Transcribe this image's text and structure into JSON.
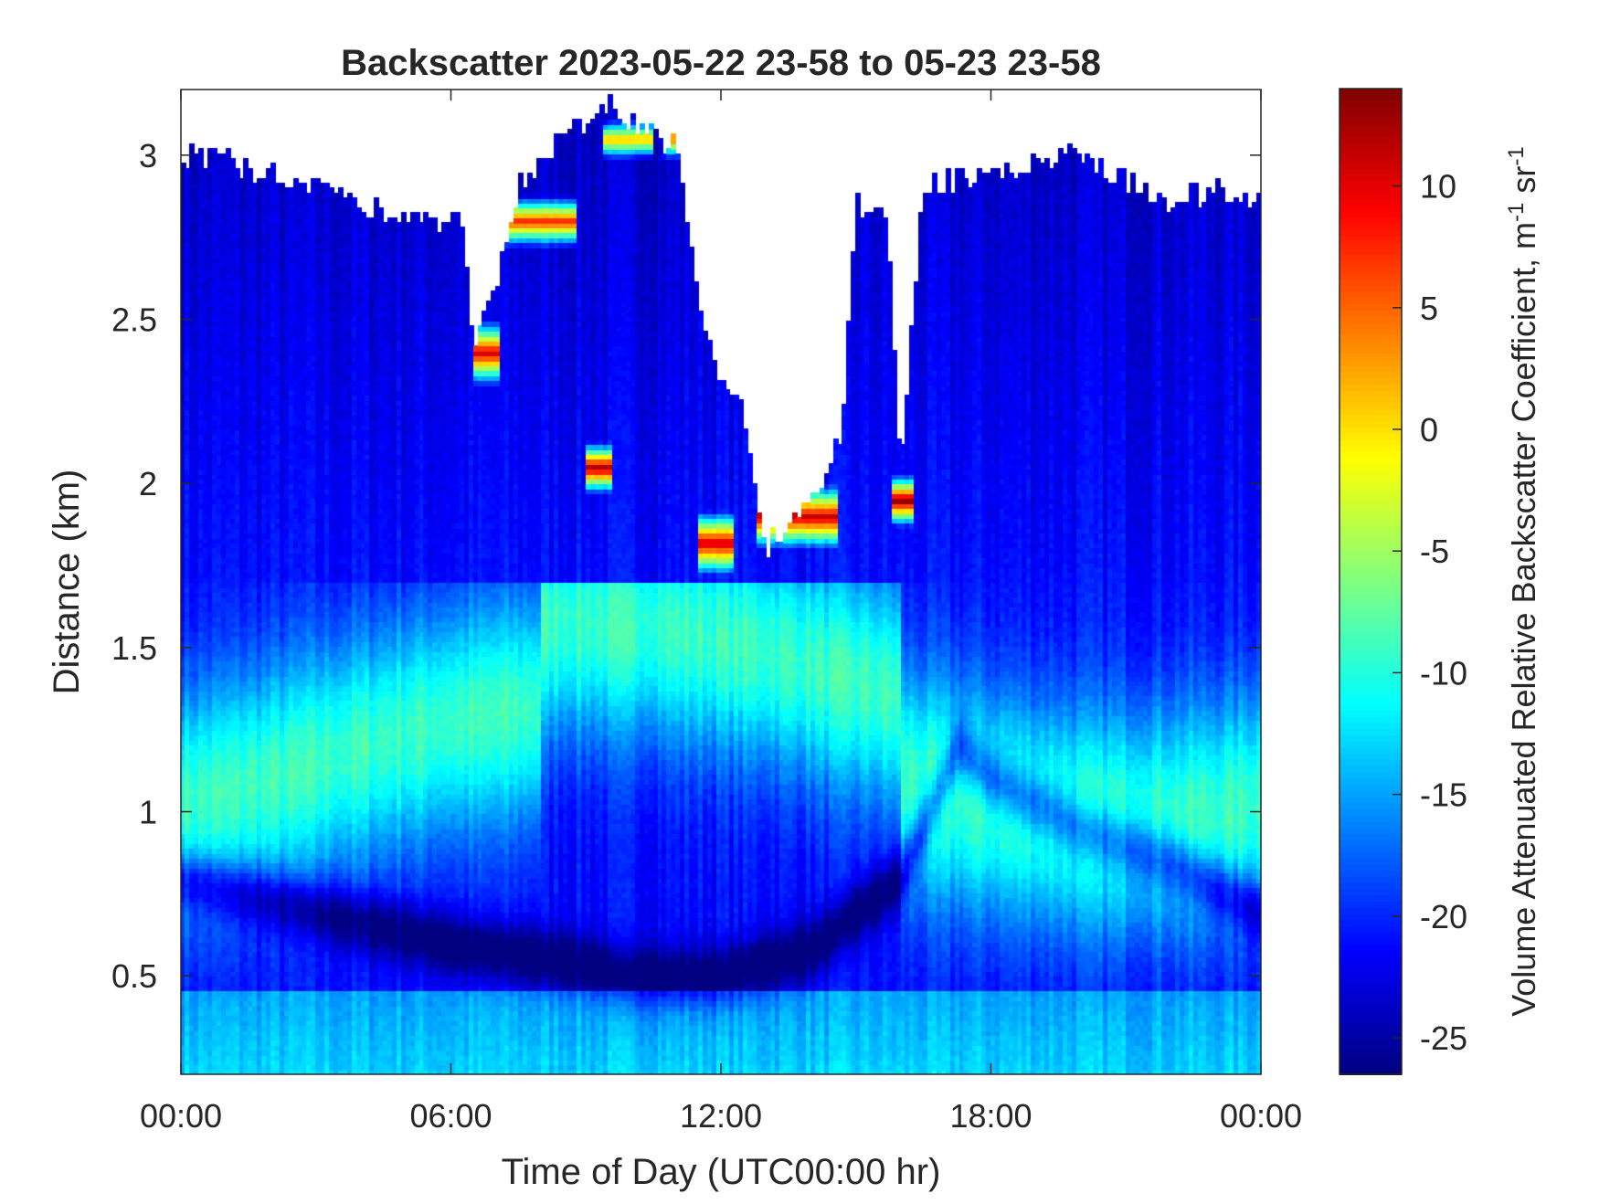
{
  "chart_data": {
    "type": "heatmap",
    "title": "Backscatter 2023-05-22 23-58 to 05-23 23-58",
    "xlabel": "Time of Day (UTC00:00 hr)",
    "ylabel": "Distance (km)",
    "colorbar_label": "Volume Attenuated Relative Backscatter Coefficient, m",
    "colorbar_sup_1": "-1",
    "colorbar_unit_2": " sr",
    "colorbar_sup_2": "-1",
    "xlim": [
      0,
      24
    ],
    "ylim": [
      0.2,
      3.2
    ],
    "clim": [
      -26.5,
      14
    ],
    "x_ticks": [
      {
        "value": 0,
        "label": "00:00"
      },
      {
        "value": 6,
        "label": "06:00"
      },
      {
        "value": 12,
        "label": "12:00"
      },
      {
        "value": 18,
        "label": "18:00"
      },
      {
        "value": 24,
        "label": "00:00"
      }
    ],
    "y_ticks": [
      {
        "value": 0.5,
        "label": "0.5"
      },
      {
        "value": 1,
        "label": "1"
      },
      {
        "value": 1.5,
        "label": "1.5"
      },
      {
        "value": 2,
        "label": "2"
      },
      {
        "value": 2.5,
        "label": "2.5"
      },
      {
        "value": 3,
        "label": "3"
      }
    ],
    "colorbar_ticks": [
      {
        "value": -25,
        "label": "-25"
      },
      {
        "value": -20,
        "label": "-20"
      },
      {
        "value": -15,
        "label": "-15"
      },
      {
        "value": -10,
        "label": "-10"
      },
      {
        "value": -5,
        "label": "-5"
      },
      {
        "value": 0,
        "label": "0"
      },
      {
        "value": 5,
        "label": "5"
      },
      {
        "value": 10,
        "label": "10"
      }
    ],
    "colormap": "jet",
    "grid": false,
    "features": {
      "cloud_top_profile": [
        [
          0,
          3.0
        ],
        [
          2,
          2.95
        ],
        [
          4,
          2.85
        ],
        [
          5.5,
          2.8
        ],
        [
          6.2,
          2.8
        ],
        [
          6.5,
          2.45
        ],
        [
          7,
          2.6
        ],
        [
          7.5,
          2.9
        ],
        [
          8.5,
          3.05
        ],
        [
          9.5,
          3.15
        ],
        [
          10,
          3.1
        ],
        [
          10.5,
          3.05
        ],
        [
          11,
          3.05
        ],
        [
          11.5,
          2.55
        ],
        [
          12,
          2.3
        ],
        [
          12.5,
          2.25
        ],
        [
          13,
          1.8
        ],
        [
          14,
          1.95
        ],
        [
          14.7,
          2.15
        ],
        [
          15,
          2.85
        ],
        [
          15.7,
          2.85
        ],
        [
          16,
          2.0
        ],
        [
          16.5,
          2.9
        ],
        [
          18,
          2.95
        ],
        [
          20,
          3.0
        ],
        [
          22,
          2.85
        ],
        [
          23,
          2.9
        ],
        [
          24,
          2.85
        ]
      ],
      "cloud_base_layers": [
        {
          "x0": 6.5,
          "x1": 7.1,
          "y": 2.4,
          "thickness": 0.1,
          "value": 11
        },
        {
          "x0": 7.2,
          "x1": 8.8,
          "y": 2.8,
          "thickness": 0.08,
          "value": 8
        },
        {
          "x0": 9.0,
          "x1": 9.6,
          "y": 2.05,
          "thickness": 0.08,
          "value": 13
        },
        {
          "x0": 9.4,
          "x1": 10.5,
          "y": 3.05,
          "thickness": 0.06,
          "value": 3
        },
        {
          "x0": 10.7,
          "x1": 11.3,
          "y": 3.05,
          "thickness": 0.06,
          "value": 6
        },
        {
          "x0": 11.5,
          "x1": 12.3,
          "y": 1.82,
          "thickness": 0.1,
          "value": 12
        },
        {
          "x0": 12.8,
          "x1": 14.6,
          "y": 1.9,
          "thickness": 0.1,
          "value": 12
        },
        {
          "x0": 15.8,
          "x1": 16.3,
          "y": 1.95,
          "thickness": 0.08,
          "value": 14
        }
      ],
      "dark_inversion_layer": [
        [
          0,
          0.8
        ],
        [
          3,
          0.7
        ],
        [
          6,
          0.6
        ],
        [
          8.5,
          0.55
        ],
        [
          10,
          0.5
        ],
        [
          12,
          0.5
        ],
        [
          14,
          0.58
        ],
        [
          16,
          0.8
        ],
        [
          17.3,
          1.2
        ],
        [
          18,
          1.1
        ],
        [
          20,
          0.95
        ],
        [
          22,
          0.85
        ],
        [
          24,
          0.7
        ]
      ],
      "aerosol_peak_value": -9,
      "background_value": -21,
      "upper_value": -22
    }
  }
}
